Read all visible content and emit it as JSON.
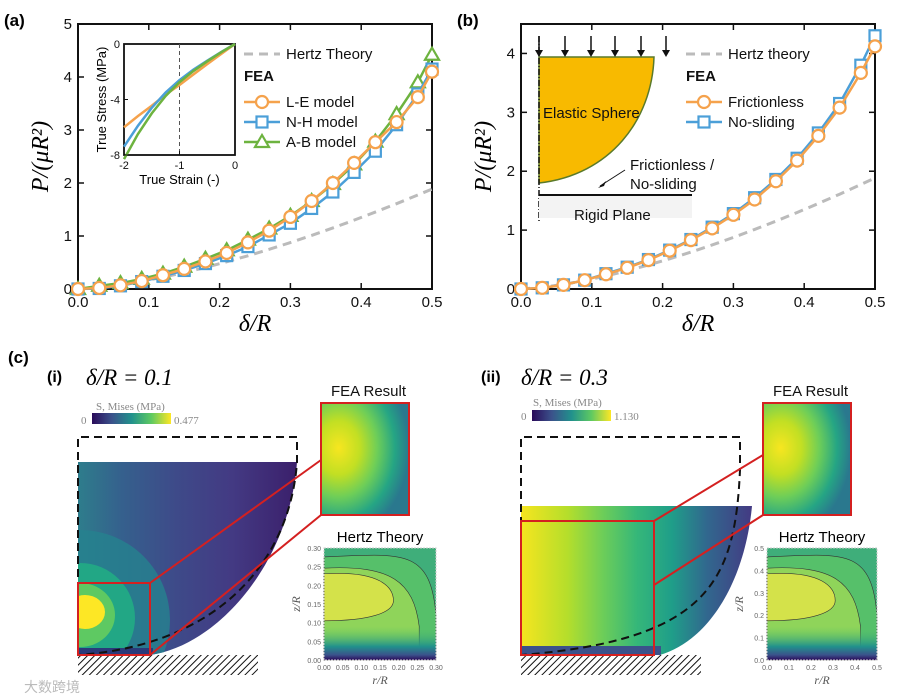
{
  "panel_labels": {
    "a": "(a)",
    "b": "(b)",
    "c": "(c)",
    "ci": "(i)",
    "cii": "(ii)"
  },
  "colors": {
    "orange": "#F5A24C",
    "blue": "#4B9FD8",
    "green": "#6DB33F",
    "hertz": "#BBBBBB",
    "sphere": "#F8BA00",
    "red": "#D42020"
  },
  "chart_data": [
    {
      "id": "a",
      "type": "line",
      "title": "",
      "xlabel": "δ/R",
      "ylabel": "P/(μR²)",
      "xlim": [
        0,
        0.5
      ],
      "ylim": [
        0,
        5
      ],
      "xticks": [
        "0.0",
        "0.1",
        "0.2",
        "0.3",
        "0.4",
        "0.5"
      ],
      "yticks": [
        "0",
        "1",
        "2",
        "3",
        "4",
        "5"
      ],
      "x": [
        0,
        0.03,
        0.06,
        0.09,
        0.12,
        0.15,
        0.18,
        0.21,
        0.24,
        0.27,
        0.3,
        0.33,
        0.36,
        0.39,
        0.42,
        0.45,
        0.48,
        0.5
      ],
      "legend_position": "top-right",
      "legend_group_title": "FEA",
      "series": [
        {
          "name": "Hertz Theory",
          "style": "dashed",
          "color": "#BBBBBB",
          "values": [
            0,
            0.028,
            0.078,
            0.144,
            0.222,
            0.31,
            0.407,
            0.513,
            0.627,
            0.748,
            0.876,
            1.011,
            1.152,
            1.299,
            1.452,
            1.61,
            1.774,
            1.886
          ]
        },
        {
          "name": "A-B model",
          "marker": "triangle",
          "color": "#6DB33F",
          "values": [
            0,
            0.06,
            0.11,
            0.19,
            0.29,
            0.42,
            0.57,
            0.73,
            0.93,
            1.14,
            1.38,
            1.66,
            1.98,
            2.35,
            2.78,
            3.3,
            3.9,
            4.42
          ]
        },
        {
          "name": "N-H model",
          "marker": "square",
          "color": "#4B9FD8",
          "values": [
            0,
            0.01,
            0.06,
            0.14,
            0.24,
            0.35,
            0.48,
            0.63,
            0.8,
            1.02,
            1.24,
            1.52,
            1.83,
            2.2,
            2.6,
            3.1,
            3.68,
            4.15
          ]
        },
        {
          "name": "L-E model",
          "marker": "circle",
          "color": "#F5A24C",
          "values": [
            0,
            0.02,
            0.07,
            0.15,
            0.26,
            0.38,
            0.52,
            0.68,
            0.88,
            1.1,
            1.36,
            1.66,
            2.0,
            2.38,
            2.77,
            3.15,
            3.62,
            4.1
          ]
        }
      ],
      "inset": {
        "type": "line",
        "xlabel": "True Strain (-)",
        "ylabel": "True Stress (MPa)",
        "xlim": [
          -2,
          0
        ],
        "ylim": [
          -8,
          0
        ],
        "xticks": [
          "-2",
          "-1",
          "0"
        ],
        "yticks": [
          "0",
          "-4",
          "-8"
        ],
        "x": [
          -2,
          -1.75,
          -1.5,
          -1.25,
          -1,
          -0.75,
          -0.5,
          -0.25,
          0
        ],
        "reference_line_x": -1,
        "series": [
          {
            "name": "L-E model",
            "color": "#F5A24C",
            "values": [
              -6.0,
              -5.2,
              -4.45,
              -3.65,
              -2.95,
              -2.2,
              -1.45,
              -0.72,
              0
            ]
          },
          {
            "name": "N-H model",
            "color": "#4B9FD8",
            "values": [
              -7.4,
              -5.9,
              -4.6,
              -3.5,
              -2.6,
              -1.85,
              -1.2,
              -0.58,
              0
            ]
          },
          {
            "name": "A-B model",
            "color": "#6DB33F",
            "values": [
              -8.3,
              -6.5,
              -5.0,
              -3.75,
              -2.75,
              -1.95,
              -1.25,
              -0.6,
              0
            ]
          }
        ]
      }
    },
    {
      "id": "b",
      "type": "line",
      "xlabel": "δ/R",
      "ylabel": "P/(μR²)",
      "xlim": [
        0,
        0.5
      ],
      "ylim": [
        0,
        4.5
      ],
      "xticks": [
        "0.0",
        "0.1",
        "0.2",
        "0.3",
        "0.4",
        "0.5"
      ],
      "yticks": [
        "0",
        "1",
        "2",
        "3",
        "4"
      ],
      "x": [
        0,
        0.03,
        0.06,
        0.09,
        0.12,
        0.15,
        0.18,
        0.21,
        0.24,
        0.27,
        0.3,
        0.33,
        0.36,
        0.39,
        0.42,
        0.45,
        0.48,
        0.5
      ],
      "legend_position": "top-right",
      "legend_group_title": "FEA",
      "series": [
        {
          "name": "Hertz theory",
          "style": "dashed",
          "color": "#BBBBBB",
          "values": [
            0,
            0.028,
            0.078,
            0.144,
            0.222,
            0.31,
            0.407,
            0.513,
            0.627,
            0.748,
            0.876,
            1.011,
            1.152,
            1.299,
            1.452,
            1.61,
            1.774,
            1.886
          ]
        },
        {
          "name": "No-sliding",
          "marker": "square",
          "color": "#4B9FD8",
          "values": [
            0,
            0.02,
            0.07,
            0.15,
            0.26,
            0.37,
            0.5,
            0.66,
            0.84,
            1.05,
            1.28,
            1.55,
            1.86,
            2.22,
            2.65,
            3.15,
            3.8,
            4.3
          ]
        },
        {
          "name": "Frictionless",
          "marker": "circle",
          "color": "#F5A24C",
          "values": [
            0,
            0.02,
            0.07,
            0.15,
            0.25,
            0.36,
            0.49,
            0.65,
            0.83,
            1.03,
            1.26,
            1.52,
            1.83,
            2.18,
            2.6,
            3.08,
            3.67,
            4.12
          ]
        }
      ],
      "schematic": {
        "sphere_label": "Elastic Sphere",
        "contact_label_1": "Frictionless /",
        "contact_label_2": "No-sliding",
        "plane_label": "Rigid Plane"
      }
    },
    {
      "id": "c-i",
      "type": "heatmap",
      "title": "δ/R = 0.1",
      "colorbar_label": "S, Mises (MPa)",
      "colorbar_min": "0",
      "colorbar_max": "0.477",
      "zoom_title": "FEA Result",
      "hertz_title": "Hertz Theory",
      "hertz_xlabel": "r/R",
      "hertz_ylabel": "z/R",
      "hertz_xticks": [
        "0.00",
        "0.05",
        "0.10",
        "0.15",
        "0.20",
        "0.25",
        "0.30"
      ],
      "hertz_yticks": [
        "0.00",
        "0.05",
        "0.10",
        "0.15",
        "0.20",
        "0.25",
        "0.30"
      ]
    },
    {
      "id": "c-ii",
      "type": "heatmap",
      "title": "δ/R = 0.3",
      "colorbar_label": "S, Mises (MPa)",
      "colorbar_min": "0",
      "colorbar_max": "1.130",
      "zoom_title": "FEA Result",
      "hertz_title": "Hertz Theory",
      "hertz_xlabel": "r/R",
      "hertz_ylabel": "z/R",
      "hertz_xticks": [
        "0.0",
        "0.1",
        "0.2",
        "0.3",
        "0.4",
        "0.5"
      ],
      "hertz_yticks": [
        "0.0",
        "0.1",
        "0.2",
        "0.3",
        "0.4",
        "0.5"
      ]
    }
  ],
  "watermark": "大数跨境"
}
